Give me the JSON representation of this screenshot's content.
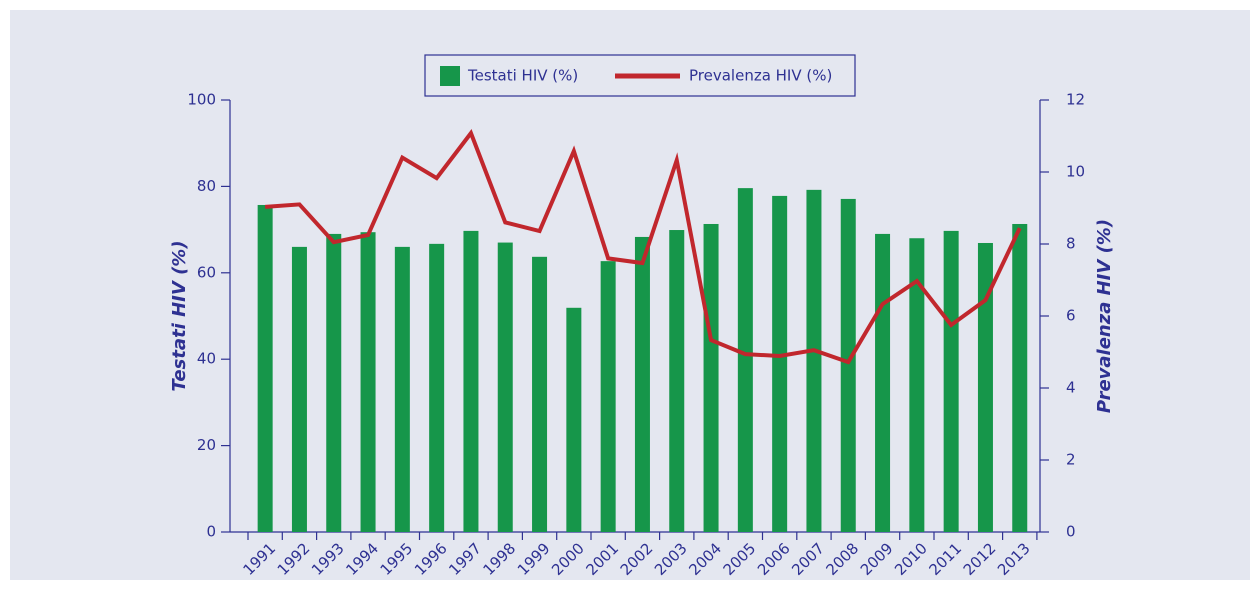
{
  "chart_data": {
    "type": "bar_line",
    "categories": [
      "1991",
      "1992",
      "1993",
      "1994",
      "1995",
      "1996",
      "1997",
      "1998",
      "1999",
      "2000",
      "2001",
      "2002",
      "2003",
      "2004",
      "2005",
      "2006",
      "2007",
      "2008",
      "2009",
      "2010",
      "2011",
      "2012",
      "2013"
    ],
    "series": [
      {
        "name": "Testati HIV (%)",
        "type": "bar",
        "color": "#16964a",
        "values": [
          75.7,
          66,
          69,
          69.4,
          66,
          66.7,
          69.7,
          67,
          63.7,
          51.9,
          62.7,
          68.3,
          69.9,
          71.3,
          79.6,
          77.8,
          79.2,
          77.1,
          69,
          68,
          69.7,
          66.9,
          71.3
        ]
      },
      {
        "name": "Prevalenza HIV (%)",
        "type": "line",
        "axis": "y2",
        "color": "#c1272d",
        "values": [
          9.03,
          9.1,
          8.05,
          8.25,
          10.4,
          9.83,
          11.08,
          8.6,
          8.36,
          10.58,
          7.6,
          7.47,
          10.33,
          5.33,
          4.94,
          4.89,
          5.05,
          4.72,
          6.33,
          6.97,
          5.75,
          6.44,
          8.44
        ]
      }
    ],
    "ylabel": "Testati HIV (%)",
    "y2label": "Prevalenza HIV (%)",
    "ylim": [
      0,
      100
    ],
    "yticks": [
      0,
      20,
      40,
      60,
      80,
      100
    ],
    "y2lim": [
      0,
      12
    ],
    "y2ticks": [
      0,
      2,
      4,
      6,
      8,
      10,
      12
    ],
    "legend": "top"
  }
}
